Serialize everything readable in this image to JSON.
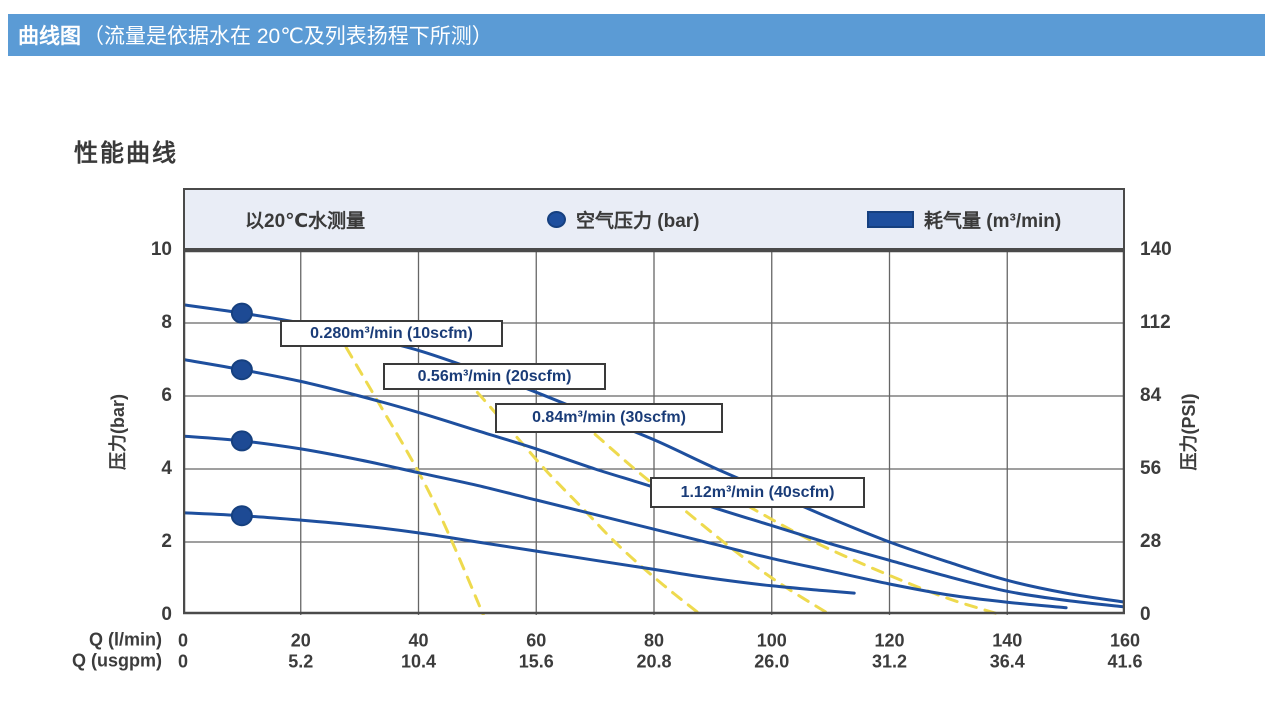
{
  "header": {
    "title_bold": "曲线图",
    "title_rest": "（流量是依据水在 20℃及列表扬程下所测）"
  },
  "section_title": "性能曲线",
  "legend": {
    "note": "以20℃水测量",
    "air_pressure": "空气压力 (bar)",
    "air_consumption": "耗气量 (m³/min)"
  },
  "axes": {
    "y_left": {
      "label": "压力(bar)",
      "ticks": [
        "10",
        "8",
        "6",
        "4",
        "2",
        "0"
      ]
    },
    "y_right": {
      "label": "压力(PSI)",
      "ticks": [
        "140",
        "112",
        "84",
        "56",
        "28",
        "0"
      ]
    },
    "x_lmin": {
      "label": "Q (l/min)",
      "ticks": [
        "0",
        "20",
        "40",
        "60",
        "80",
        "100",
        "120",
        "140",
        "160"
      ]
    },
    "x_usgpm": {
      "label": "Q (usgpm)",
      "ticks": [
        "0",
        "5.2",
        "10.4",
        "15.6",
        "20.8",
        "26.0",
        "31.2",
        "36.4",
        "41.6"
      ]
    }
  },
  "colors": {
    "header_bar": "#5b9bd5",
    "curve_blue": "#1e4f9e",
    "dot_blue": "#1d4a94",
    "air_consumption_yellow": "#eeda4e",
    "grid": "#666666",
    "plot_border": "#4a4a4a",
    "legend_bg": "#e9edf6"
  },
  "chart_data": {
    "type": "line",
    "title": "性能曲线",
    "xlabel": "Q (l/min)",
    "xlabel_secondary": "Q (usgpm)",
    "ylabel_left": "压力(bar)",
    "ylabel_right": "压力(PSI)",
    "xlim": [
      0,
      160
    ],
    "ylim_bar": [
      0,
      10
    ],
    "ylim_psi": [
      0,
      140
    ],
    "grid": true,
    "series": [
      {
        "name": "air 8.3 bar curve",
        "style": "solid-blue",
        "air_pressure_dot": {
          "x": 10,
          "y": 8.27
        },
        "points": [
          [
            0,
            8.5
          ],
          [
            10,
            8.27
          ],
          [
            20,
            8.0
          ],
          [
            30,
            7.65
          ],
          [
            40,
            7.25
          ],
          [
            50,
            6.7
          ],
          [
            60,
            6.1
          ],
          [
            70,
            5.45
          ],
          [
            80,
            4.8
          ],
          [
            90,
            4.05
          ],
          [
            100,
            3.35
          ],
          [
            110,
            2.65
          ],
          [
            120,
            2.0
          ],
          [
            130,
            1.45
          ],
          [
            140,
            0.95
          ],
          [
            150,
            0.6
          ],
          [
            160,
            0.35
          ]
        ]
      },
      {
        "name": "air 6.7 bar curve",
        "style": "solid-blue",
        "air_pressure_dot": {
          "x": 10,
          "y": 6.72
        },
        "points": [
          [
            0,
            7.0
          ],
          [
            10,
            6.72
          ],
          [
            20,
            6.4
          ],
          [
            30,
            6.0
          ],
          [
            40,
            5.55
          ],
          [
            50,
            5.05
          ],
          [
            60,
            4.55
          ],
          [
            70,
            4.0
          ],
          [
            80,
            3.5
          ],
          [
            90,
            2.95
          ],
          [
            100,
            2.45
          ],
          [
            110,
            1.95
          ],
          [
            120,
            1.5
          ],
          [
            130,
            1.05
          ],
          [
            140,
            0.65
          ],
          [
            150,
            0.4
          ],
          [
            160,
            0.22
          ]
        ]
      },
      {
        "name": "air 4.8 bar curve",
        "style": "solid-blue",
        "air_pressure_dot": {
          "x": 10,
          "y": 4.77
        },
        "points": [
          [
            0,
            4.9
          ],
          [
            10,
            4.77
          ],
          [
            20,
            4.55
          ],
          [
            30,
            4.25
          ],
          [
            40,
            3.9
          ],
          [
            50,
            3.55
          ],
          [
            60,
            3.15
          ],
          [
            70,
            2.75
          ],
          [
            80,
            2.35
          ],
          [
            90,
            1.95
          ],
          [
            100,
            1.55
          ],
          [
            110,
            1.2
          ],
          [
            120,
            0.85
          ],
          [
            130,
            0.55
          ],
          [
            140,
            0.35
          ],
          [
            150,
            0.2
          ]
        ]
      },
      {
        "name": "air 2.7 bar curve",
        "style": "solid-blue",
        "air_pressure_dot": {
          "x": 10,
          "y": 2.72
        },
        "points": [
          [
            0,
            2.8
          ],
          [
            10,
            2.72
          ],
          [
            20,
            2.6
          ],
          [
            30,
            2.45
          ],
          [
            40,
            2.25
          ],
          [
            50,
            2.0
          ],
          [
            60,
            1.75
          ],
          [
            70,
            1.5
          ],
          [
            80,
            1.25
          ],
          [
            90,
            1.0
          ],
          [
            100,
            0.8
          ],
          [
            108,
            0.68
          ],
          [
            114,
            0.6
          ]
        ]
      }
    ],
    "air_consumption_curves": [
      {
        "name": "0.280 m3/min (10 scfm)",
        "style": "dashed-yellow",
        "points": [
          [
            26,
            7.8
          ],
          [
            30,
            6.7
          ],
          [
            34,
            5.6
          ],
          [
            38,
            4.5
          ],
          [
            42,
            3.3
          ],
          [
            46,
            1.9
          ],
          [
            51,
            0
          ]
        ]
      },
      {
        "name": "0.56 m3/min (20 scfm)",
        "style": "dashed-yellow",
        "points": [
          [
            50,
            6.1
          ],
          [
            56,
            5.0
          ],
          [
            62,
            3.9
          ],
          [
            68,
            2.9
          ],
          [
            74,
            1.9
          ],
          [
            81,
            0.9
          ],
          [
            88,
            0
          ]
        ]
      },
      {
        "name": "0.84 m3/min (30 scfm)",
        "style": "dashed-yellow",
        "points": [
          [
            70,
            4.95
          ],
          [
            76,
            4.1
          ],
          [
            82,
            3.3
          ],
          [
            88,
            2.5
          ],
          [
            95,
            1.6
          ],
          [
            102,
            0.8
          ],
          [
            110,
            0
          ]
        ]
      },
      {
        "name": "1.12 m3/min (40 scfm)",
        "style": "dashed-yellow",
        "points": [
          [
            90,
            3.55
          ],
          [
            98,
            2.8
          ],
          [
            106,
            2.1
          ],
          [
            114,
            1.5
          ],
          [
            122,
            0.95
          ],
          [
            130,
            0.45
          ],
          [
            138,
            0.05
          ]
        ]
      }
    ],
    "curve_labels": [
      "0.280m³/min (10scfm)",
      "0.56m³/min (20scfm)",
      "0.84m³/min (30scfm)",
      "1.12m³/min (40scfm)"
    ]
  }
}
